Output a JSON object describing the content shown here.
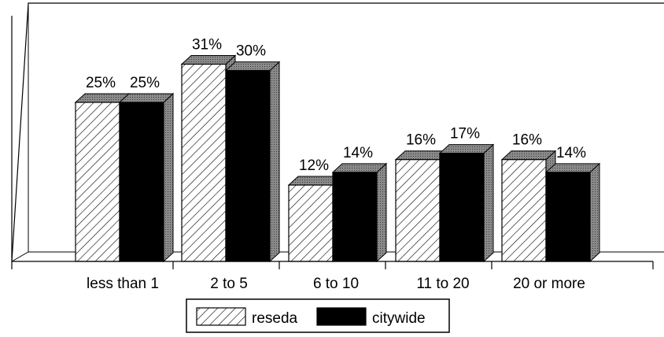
{
  "chart_data": {
    "type": "bar",
    "title": "",
    "xlabel": "",
    "ylabel": "",
    "ylim": [
      0,
      35
    ],
    "grid": false,
    "legend_position": "bottom",
    "categories": [
      "less than 1",
      "2 to 5",
      "6 to 10",
      "11 to 20",
      "20 or more"
    ],
    "series": [
      {
        "name": "reseda",
        "values": [
          25,
          31,
          12,
          16,
          16
        ],
        "labels": [
          "25%",
          "31%",
          "12%",
          "16%",
          "16%"
        ],
        "pattern": "hatched"
      },
      {
        "name": "citywide",
        "values": [
          25,
          30,
          14,
          17,
          14
        ],
        "labels": [
          "25%",
          "30%",
          "14%",
          "17%",
          "14%"
        ],
        "color": "#000000"
      }
    ]
  }
}
